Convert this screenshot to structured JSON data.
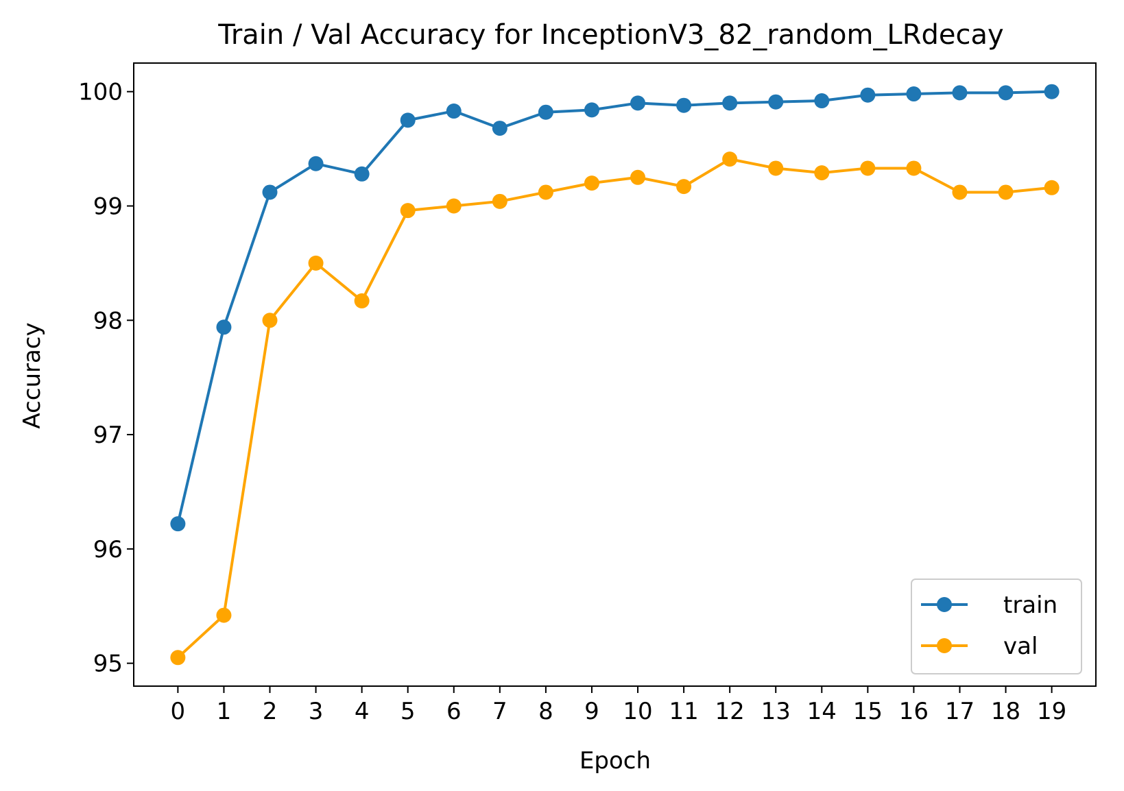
{
  "chart_data": {
    "type": "line",
    "title": "Train / Val Accuracy for InceptionV3_82_random_LRdecay",
    "xlabel": "Epoch",
    "ylabel": "Accuracy",
    "x": [
      0,
      1,
      2,
      3,
      4,
      5,
      6,
      7,
      8,
      9,
      10,
      11,
      12,
      13,
      14,
      15,
      16,
      17,
      18,
      19
    ],
    "xticks": [
      "0",
      "1",
      "2",
      "3",
      "4",
      "5",
      "6",
      "7",
      "8",
      "9",
      "10",
      "11",
      "12",
      "13",
      "14",
      "15",
      "16",
      "17",
      "18",
      "19"
    ],
    "yticks": [
      95,
      96,
      97,
      98,
      99,
      100
    ],
    "ytick_labels": [
      "95",
      "96",
      "97",
      "98",
      "99",
      "100"
    ],
    "xlim": [
      -0.96,
      19.96
    ],
    "ylim": [
      94.8,
      100.25
    ],
    "grid": false,
    "legend_position": "lower-right",
    "series": [
      {
        "name": "train",
        "color": "#1f77b4",
        "marker": "circle",
        "values": [
          96.22,
          97.94,
          99.12,
          99.37,
          99.28,
          99.75,
          99.83,
          99.68,
          99.82,
          99.84,
          99.9,
          99.88,
          99.9,
          99.91,
          99.92,
          99.97,
          99.98,
          99.99,
          99.99,
          100.0
        ]
      },
      {
        "name": "val",
        "color": "#ffa500",
        "marker": "circle",
        "values": [
          95.05,
          95.42,
          98.0,
          98.5,
          98.17,
          98.96,
          99.0,
          99.04,
          99.12,
          99.2,
          99.25,
          99.17,
          99.41,
          99.33,
          99.29,
          99.33,
          99.33,
          99.12,
          99.12,
          99.16
        ]
      }
    ]
  }
}
